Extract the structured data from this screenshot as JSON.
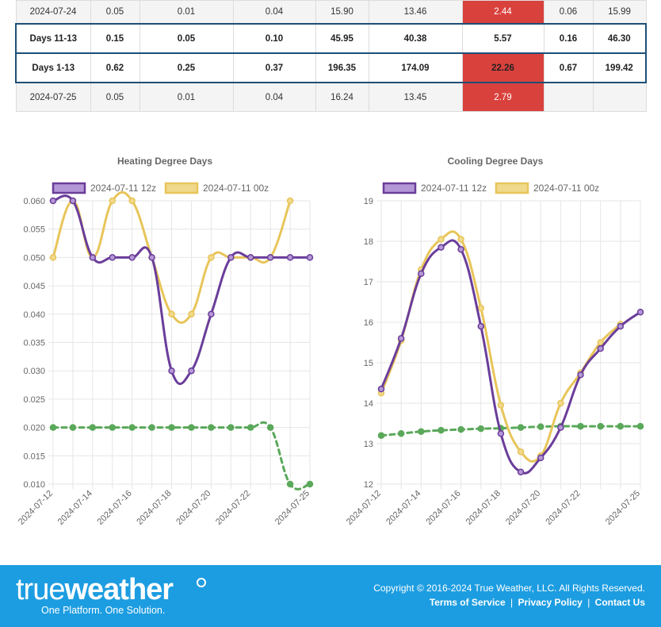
{
  "table": {
    "rows": [
      {
        "label": "2024-07-24",
        "c1": "0.05",
        "c2": "0.01",
        "c3": "0.04",
        "c4": "15.90",
        "c5": "13.46",
        "c6": "2.44",
        "c7": "0.06",
        "c8": "15.99",
        "hot": true,
        "summary": false
      },
      {
        "label": "Days 11-13",
        "c1": "0.15",
        "c2": "0.05",
        "c3": "0.10",
        "c4": "45.95",
        "c5": "40.38",
        "c6": "5.57",
        "c7": "0.16",
        "c8": "46.30",
        "hot": false,
        "summary": true
      },
      {
        "label": "Days 1-13",
        "c1": "0.62",
        "c2": "0.25",
        "c3": "0.37",
        "c4": "196.35",
        "c5": "174.09",
        "c6": "22.26",
        "c7": "0.67",
        "c8": "199.42",
        "hot": true,
        "summary": true
      },
      {
        "label": "2024-07-25",
        "c1": "0.05",
        "c2": "0.01",
        "c3": "0.04",
        "c4": "16.24",
        "c5": "13.45",
        "c6": "2.79",
        "c7": "",
        "c8": "",
        "hot": true,
        "summary": false
      }
    ]
  },
  "colors": {
    "purple": "#6a3d9a",
    "purple_fill": "#b497d6",
    "yellow": "#e8c55a",
    "yellow_fill": "#f0d98a",
    "green": "#5aa85a",
    "footer": "#1d9de1",
    "hot": "#d9413d"
  },
  "chart_data": [
    {
      "type": "line",
      "title": "Heating Degree Days",
      "legend": [
        "2024-07-11 12z",
        "2024-07-11 00z"
      ],
      "legend_position": "top",
      "grid": true,
      "x": [
        "2024-07-12",
        "2024-07-13",
        "2024-07-14",
        "2024-07-15",
        "2024-07-16",
        "2024-07-17",
        "2024-07-18",
        "2024-07-19",
        "2024-07-20",
        "2024-07-21",
        "2024-07-22",
        "2024-07-23",
        "2024-07-24",
        "2024-07-25"
      ],
      "xtick_labels": [
        "2024-07-12",
        "2024-07-14",
        "2024-07-16",
        "2024-07-18",
        "2024-07-20",
        "2024-07-22",
        "2024-07-25"
      ],
      "ylim": [
        0.01,
        0.06
      ],
      "yticks": [
        "0.060",
        "0.055",
        "0.050",
        "0.045",
        "0.040",
        "0.035",
        "0.030",
        "0.025",
        "0.020",
        "0.015",
        "0.010"
      ],
      "series": [
        {
          "name": "2024-07-11 12z",
          "color": "purple",
          "values": [
            0.06,
            0.06,
            0.05,
            0.05,
            0.05,
            0.05,
            0.03,
            0.03,
            0.04,
            0.05,
            0.05,
            0.05,
            0.05,
            0.05
          ]
        },
        {
          "name": "2024-07-11 00z",
          "color": "yellow",
          "values": [
            0.05,
            0.06,
            0.05,
            0.06,
            0.06,
            0.05,
            0.04,
            0.04,
            0.05,
            0.05,
            0.05,
            0.05,
            0.06,
            null
          ]
        },
        {
          "color": "green",
          "dashed": true,
          "values": [
            0.02,
            0.02,
            0.02,
            0.02,
            0.02,
            0.02,
            0.02,
            0.02,
            0.02,
            0.02,
            0.02,
            0.02,
            0.01,
            0.01
          ]
        }
      ]
    },
    {
      "type": "line",
      "title": "Cooling Degree Days",
      "legend": [
        "2024-07-11 12z",
        "2024-07-11 00z"
      ],
      "legend_position": "top",
      "grid": true,
      "x": [
        "2024-07-12",
        "2024-07-13",
        "2024-07-14",
        "2024-07-15",
        "2024-07-16",
        "2024-07-17",
        "2024-07-18",
        "2024-07-19",
        "2024-07-20",
        "2024-07-21",
        "2024-07-22",
        "2024-07-23",
        "2024-07-24",
        "2024-07-25"
      ],
      "xtick_labels": [
        "2024-07-12",
        "2024-07-14",
        "2024-07-16",
        "2024-07-18",
        "2024-07-20",
        "2024-07-22",
        "2024-07-25"
      ],
      "ylim": [
        12,
        19
      ],
      "yticks": [
        "19",
        "18",
        "17",
        "16",
        "15",
        "14",
        "13",
        "12"
      ],
      "series": [
        {
          "name": "2024-07-11 12z",
          "color": "purple",
          "values": [
            14.35,
            15.6,
            17.2,
            17.85,
            17.8,
            15.9,
            13.25,
            12.3,
            12.65,
            13.4,
            14.7,
            15.35,
            15.9,
            16.25
          ]
        },
        {
          "name": "2024-07-11 00z",
          "color": "yellow",
          "values": [
            14.25,
            15.55,
            17.3,
            18.05,
            18.05,
            16.35,
            13.95,
            12.8,
            12.7,
            14.0,
            14.75,
            15.5,
            15.95,
            null
          ]
        },
        {
          "color": "green",
          "dashed": true,
          "values": [
            13.2,
            13.25,
            13.3,
            13.33,
            13.35,
            13.37,
            13.38,
            13.4,
            13.42,
            13.43,
            13.43,
            13.43,
            13.43,
            13.43
          ]
        }
      ]
    }
  ],
  "footer": {
    "logo_part1": "true",
    "logo_part2": "weather",
    "tagline": "One Platform. One Solution.",
    "copyright": "Copyright © 2016-2024 True Weather, LLC. All Rights Reserved.",
    "link_terms": "Terms of Service",
    "link_privacy": "Privacy Policy",
    "link_contact": "Contact Us",
    "separator": "|"
  }
}
